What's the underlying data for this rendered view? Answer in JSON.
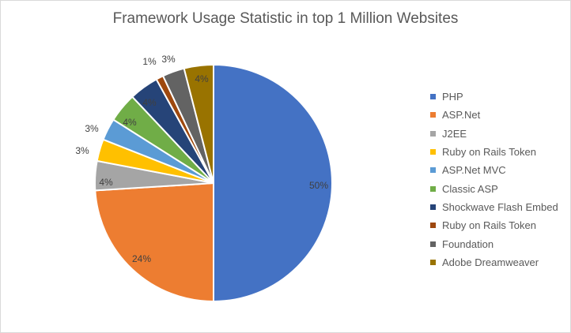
{
  "chart_data": {
    "type": "pie",
    "title": "Framework Usage Statistic in top 1 Million Websites",
    "slices": [
      {
        "name": "PHP",
        "value": 50,
        "label": "50%",
        "color": "#4472C4"
      },
      {
        "name": "ASP.Net",
        "value": 24,
        "label": "24%",
        "color": "#ED7D31"
      },
      {
        "name": "J2EE",
        "value": 4,
        "label": "4%",
        "color": "#A5A5A5"
      },
      {
        "name": "Ruby on Rails Token",
        "value": 3,
        "label": "3%",
        "color": "#FFC000"
      },
      {
        "name": "ASP.Net MVC",
        "value": 3,
        "label": "3%",
        "color": "#5B9BD5"
      },
      {
        "name": "Classic ASP",
        "value": 4,
        "label": "4%",
        "color": "#70AD47"
      },
      {
        "name": "Shockwave Flash Embed",
        "value": 4,
        "label": "4%",
        "color": "#264478"
      },
      {
        "name": "Ruby on Rails Token",
        "value": 1,
        "label": "1%",
        "color": "#9E480E"
      },
      {
        "name": "Foundation",
        "value": 3,
        "label": "3%",
        "color": "#636363"
      },
      {
        "name": "Adobe Dreamweaver",
        "value": 4,
        "label": "4%",
        "color": "#997300"
      }
    ],
    "legend_position": "right"
  }
}
